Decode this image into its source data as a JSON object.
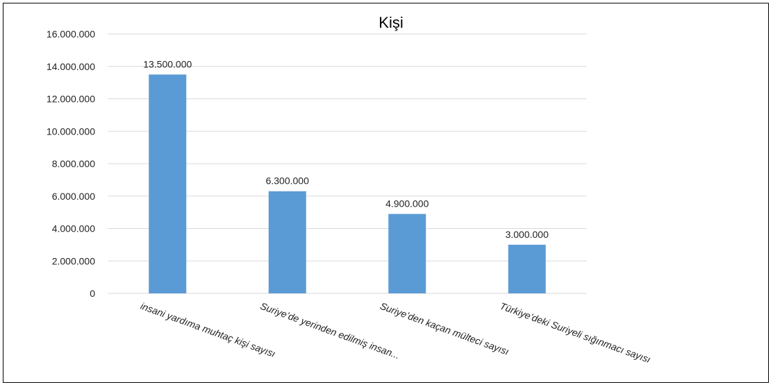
{
  "chart_data": {
    "type": "bar",
    "title": "Kişi",
    "categories": [
      "insani yardıma muhtaç kişi sayısı",
      "Suriye’de yerinden edilmiş insan...",
      "Suriye’den kaçan mülteci sayısı",
      "Türkiye’deki Suriyeli sığınmacı sayısı"
    ],
    "values": [
      13500000,
      6300000,
      4900000,
      3000000
    ],
    "value_labels": [
      "13.500.000",
      "6.300.000",
      "4.900.000",
      "3.000.000"
    ],
    "yticks": [
      0,
      2000000,
      4000000,
      6000000,
      8000000,
      10000000,
      12000000,
      14000000,
      16000000
    ],
    "ytick_labels": [
      "0",
      "2.000.000",
      "4.000.000",
      "6.000.000",
      "8.000.000",
      "10.000.000",
      "12.000.000",
      "14.000.000",
      "16.000.000"
    ],
    "ylim": [
      0,
      16000000
    ],
    "grid": true,
    "bar_color": "#5B9BD5",
    "gridline_color": "#D9D9D9"
  }
}
